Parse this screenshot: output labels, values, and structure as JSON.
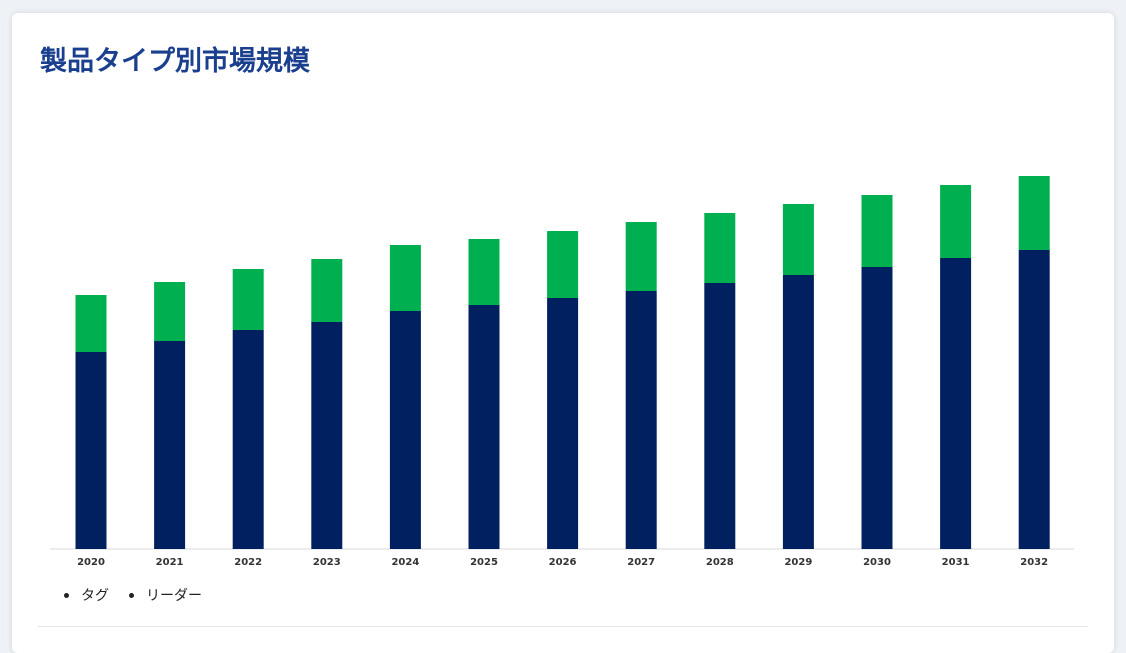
{
  "title": "製品タイプ別市場規模",
  "colors": {
    "series_0": "#00205f",
    "series_1": "#00b050",
    "title": "#1b3f8f"
  },
  "legend": {
    "items": [
      {
        "label": "タグ"
      },
      {
        "label": "リーダー"
      }
    ]
  },
  "chart_data": {
    "type": "bar",
    "stacked": true,
    "categories": [
      "2020",
      "2021",
      "2022",
      "2023",
      "2024",
      "2025",
      "2026",
      "2027",
      "2028",
      "2029",
      "2030",
      "2031",
      "2032"
    ],
    "series": [
      {
        "name": "タグ",
        "values": [
          197,
          208,
          219,
          227,
          238,
          244,
          251,
          258,
          266,
          274,
          282,
          291,
          299
        ]
      },
      {
        "name": "リーダー",
        "values": [
          57,
          59,
          61,
          63,
          66,
          66,
          67,
          69,
          70,
          71,
          72,
          73,
          74
        ]
      }
    ],
    "ylim": [
      0,
      380
    ],
    "grid": false,
    "legend_position": "bottom-left"
  }
}
